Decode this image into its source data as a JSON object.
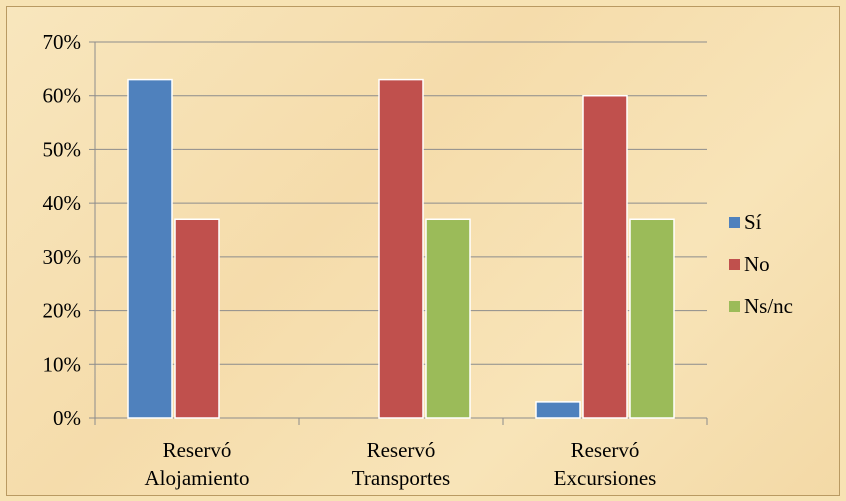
{
  "chart_data": {
    "type": "bar",
    "categories": [
      [
        "Reservó",
        "Alojamiento"
      ],
      [
        "Reservó",
        "Transportes"
      ],
      [
        "Reservó",
        "Excursiones"
      ]
    ],
    "series": [
      {
        "name": "Sí",
        "values": [
          63,
          0,
          3
        ],
        "color": "#4f81bd"
      },
      {
        "name": "No",
        "values": [
          37,
          63,
          60
        ],
        "color": "#c0504d"
      },
      {
        "name": "Ns/nc",
        "values": [
          0,
          37,
          37
        ],
        "color": "#9bbb59"
      }
    ],
    "ylim": [
      0,
      70
    ],
    "ytick_step": 10,
    "y_unit": "%",
    "grid": true,
    "legend_position": "right"
  }
}
